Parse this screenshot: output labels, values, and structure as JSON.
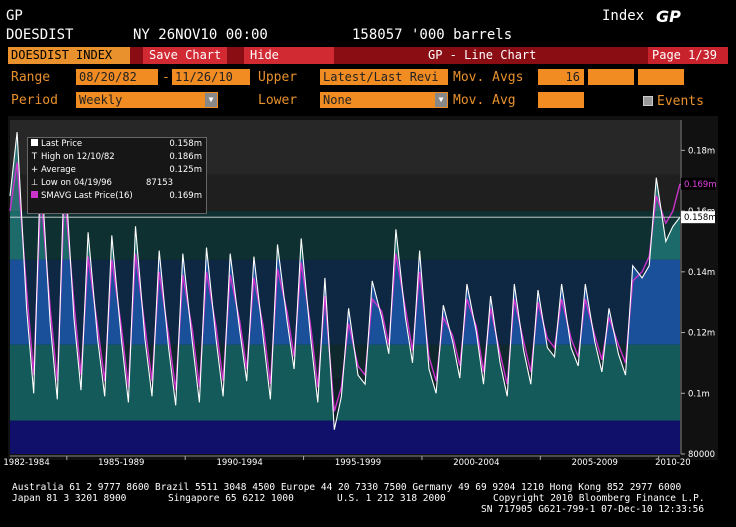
{
  "header": {
    "ticker": "GP",
    "index_label": "Index",
    "index_code": "GP",
    "name": "DOESDIST",
    "date_time": "NY 26NOV10 00:00",
    "value": "158057 '000 barrels"
  },
  "tabs": {
    "index": "DOESDIST INDEX",
    "save": "Save Chart",
    "hide": "Hide",
    "title": "GP - Line Chart",
    "page": "Page 1/39"
  },
  "controls": {
    "range_label": "Range",
    "range_start": "08/20/82",
    "range_sep": "-",
    "range_end": "11/26/10",
    "upper_label": "Upper",
    "upper_value": "Latest/Last Revi",
    "mov_avgs_label": "Mov. Avgs",
    "mov_avgs_value": "16",
    "period_label": "Period",
    "period_value": "Weekly",
    "lower_label": "Lower",
    "lower_value": "None",
    "mov_avg_label": "Mov. Avg",
    "events_label": "Events"
  },
  "legend": {
    "last_price_label": "Last Price",
    "last_price_value": "0.158m",
    "high_label": "High on 12/10/82",
    "high_value": "0.186m",
    "average_label": "Average",
    "average_value": "0.125m",
    "low_label": "Low on 04/19/96",
    "low_value": "87153",
    "smavg_label": "SMAVG Last Price(16)",
    "smavg_value": "0.169m"
  },
  "colors": {
    "price_line": "#ffffff",
    "smavg_line": "#cc33cc",
    "band_top": "#2b2b2b",
    "band_teal": "#0f4a4a",
    "band_blue": "#0c3a6e",
    "band_navy": "#0a0a45",
    "accent_orange": "#e8912d",
    "tab_red": "#8b0d14"
  },
  "chart_data": {
    "type": "line",
    "title": "GP - Line Chart",
    "xlabel": "",
    "ylabel": "",
    "ylim": [
      80000,
      190000
    ],
    "x_tick_labels": [
      "1982-1984",
      "1985-1989",
      "1990-1994",
      "1995-1999",
      "2000-2004",
      "2005-2009",
      "2010-20"
    ],
    "y_tick_labels": [
      "0.18m",
      "0.16m",
      "0.14m",
      "0.12m",
      "0.1m",
      "80000"
    ],
    "last_price_tag": "0.158m",
    "smavg_tag": "0.169m",
    "series": [
      {
        "name": "Last Price",
        "points": [
          [
            "1982.6",
            165000
          ],
          [
            "1982.9",
            186000
          ],
          [
            "1983.3",
            128000
          ],
          [
            "1983.6",
            100000
          ],
          [
            "1983.9",
            176000
          ],
          [
            "1984.3",
            123000
          ],
          [
            "1984.6",
            98000
          ],
          [
            "1984.9",
            176000
          ],
          [
            "1985.3",
            125000
          ],
          [
            "1985.6",
            101000
          ],
          [
            "1985.9",
            153000
          ],
          [
            "1986.3",
            118000
          ],
          [
            "1986.6",
            99000
          ],
          [
            "1986.9",
            152000
          ],
          [
            "1987.3",
            118000
          ],
          [
            "1987.6",
            97000
          ],
          [
            "1987.9",
            155000
          ],
          [
            "1988.3",
            118000
          ],
          [
            "1988.6",
            99000
          ],
          [
            "1988.9",
            147000
          ],
          [
            "1989.3",
            115000
          ],
          [
            "1989.6",
            96000
          ],
          [
            "1989.9",
            146000
          ],
          [
            "1990.3",
            117000
          ],
          [
            "1990.6",
            97000
          ],
          [
            "1990.9",
            148000
          ],
          [
            "1991.3",
            118000
          ],
          [
            "1991.6",
            99000
          ],
          [
            "1991.9",
            146000
          ],
          [
            "1992.3",
            121000
          ],
          [
            "1992.6",
            104000
          ],
          [
            "1992.9",
            145000
          ],
          [
            "1993.3",
            118000
          ],
          [
            "1993.6",
            98000
          ],
          [
            "1993.9",
            149000
          ],
          [
            "1994.3",
            124000
          ],
          [
            "1994.6",
            108000
          ],
          [
            "1994.9",
            151000
          ],
          [
            "1995.3",
            118000
          ],
          [
            "1995.6",
            97000
          ],
          [
            "1995.9",
            138000
          ],
          [
            "1996.3",
            88000
          ],
          [
            "1996.6",
            99000
          ],
          [
            "1996.9",
            128000
          ],
          [
            "1997.3",
            106000
          ],
          [
            "1997.6",
            103000
          ],
          [
            "1997.9",
            137000
          ],
          [
            "1998.3",
            125000
          ],
          [
            "1998.6",
            113000
          ],
          [
            "1998.9",
            154000
          ],
          [
            "1999.3",
            125000
          ],
          [
            "1999.6",
            110000
          ],
          [
            "1999.9",
            147000
          ],
          [
            "2000.3",
            108000
          ],
          [
            "2000.6",
            100000
          ],
          [
            "2000.9",
            129000
          ],
          [
            "2001.3",
            117000
          ],
          [
            "2001.6",
            105000
          ],
          [
            "2001.9",
            136000
          ],
          [
            "2002.3",
            120000
          ],
          [
            "2002.6",
            103000
          ],
          [
            "2002.9",
            132000
          ],
          [
            "2003.3",
            110000
          ],
          [
            "2003.6",
            99000
          ],
          [
            "2003.9",
            136000
          ],
          [
            "2004.3",
            114000
          ],
          [
            "2004.6",
            103000
          ],
          [
            "2004.9",
            134000
          ],
          [
            "2005.3",
            115000
          ],
          [
            "2005.6",
            112000
          ],
          [
            "2005.9",
            136000
          ],
          [
            "2006.3",
            115000
          ],
          [
            "2006.6",
            109000
          ],
          [
            "2006.9",
            136000
          ],
          [
            "2007.3",
            117000
          ],
          [
            "2007.6",
            107000
          ],
          [
            "2007.9",
            128000
          ],
          [
            "2008.3",
            113000
          ],
          [
            "2008.6",
            106000
          ],
          [
            "2008.9",
            142000
          ],
          [
            "2009.3",
            138000
          ],
          [
            "2009.6",
            142000
          ],
          [
            "2009.9",
            171000
          ],
          [
            "2010.3",
            150000
          ],
          [
            "2010.6",
            155000
          ],
          [
            "2010.9",
            158000
          ]
        ]
      },
      {
        "name": "SMAVG Last Price(16)",
        "points": [
          [
            "1982.6",
            160000
          ],
          [
            "1982.9",
            176000
          ],
          [
            "1983.3",
            134000
          ],
          [
            "1983.6",
            106000
          ],
          [
            "1983.9",
            166000
          ],
          [
            "1984.3",
            128000
          ],
          [
            "1984.6",
            104000
          ],
          [
            "1984.9",
            166000
          ],
          [
            "1985.3",
            130000
          ],
          [
            "1985.6",
            106000
          ],
          [
            "1985.9",
            145000
          ],
          [
            "1986.3",
            122000
          ],
          [
            "1986.6",
            104000
          ],
          [
            "1986.9",
            144000
          ],
          [
            "1987.3",
            122000
          ],
          [
            "1987.6",
            102000
          ],
          [
            "1987.9",
            146000
          ],
          [
            "1988.3",
            122000
          ],
          [
            "1988.6",
            104000
          ],
          [
            "1988.9",
            140000
          ],
          [
            "1989.3",
            119000
          ],
          [
            "1989.6",
            101000
          ],
          [
            "1989.9",
            139000
          ],
          [
            "1990.3",
            121000
          ],
          [
            "1990.6",
            102000
          ],
          [
            "1990.9",
            140000
          ],
          [
            "1991.3",
            122000
          ],
          [
            "1991.6",
            104000
          ],
          [
            "1991.9",
            139000
          ],
          [
            "1992.3",
            124000
          ],
          [
            "1992.6",
            108000
          ],
          [
            "1992.9",
            138000
          ],
          [
            "1993.3",
            122000
          ],
          [
            "1993.6",
            103000
          ],
          [
            "1993.9",
            141000
          ],
          [
            "1994.3",
            127000
          ],
          [
            "1994.6",
            112000
          ],
          [
            "1994.9",
            143000
          ],
          [
            "1995.3",
            122000
          ],
          [
            "1995.6",
            102000
          ],
          [
            "1995.9",
            132000
          ],
          [
            "1996.3",
            94000
          ],
          [
            "1996.6",
            102000
          ],
          [
            "1996.9",
            123000
          ],
          [
            "1997.3",
            109000
          ],
          [
            "1997.6",
            106000
          ],
          [
            "1997.9",
            131000
          ],
          [
            "1998.3",
            127000
          ],
          [
            "1998.6",
            116000
          ],
          [
            "1998.9",
            146000
          ],
          [
            "1999.3",
            128000
          ],
          [
            "1999.6",
            114000
          ],
          [
            "1999.9",
            140000
          ],
          [
            "2000.3",
            112000
          ],
          [
            "2000.6",
            104000
          ],
          [
            "2000.9",
            125000
          ],
          [
            "2001.3",
            119000
          ],
          [
            "2001.6",
            109000
          ],
          [
            "2001.9",
            131000
          ],
          [
            "2002.3",
            122000
          ],
          [
            "2002.6",
            107000
          ],
          [
            "2002.9",
            128000
          ],
          [
            "2003.3",
            113000
          ],
          [
            "2003.6",
            103000
          ],
          [
            "2003.9",
            131000
          ],
          [
            "2004.3",
            117000
          ],
          [
            "2004.6",
            107000
          ],
          [
            "2004.9",
            130000
          ],
          [
            "2005.3",
            118000
          ],
          [
            "2005.6",
            115000
          ],
          [
            "2005.9",
            131000
          ],
          [
            "2006.3",
            118000
          ],
          [
            "2006.6",
            112000
          ],
          [
            "2006.9",
            131000
          ],
          [
            "2007.3",
            119000
          ],
          [
            "2007.6",
            111000
          ],
          [
            "2007.9",
            125000
          ],
          [
            "2008.3",
            116000
          ],
          [
            "2008.6",
            110000
          ],
          [
            "2008.9",
            137000
          ],
          [
            "2009.3",
            140000
          ],
          [
            "2009.6",
            145000
          ],
          [
            "2009.9",
            165000
          ],
          [
            "2010.3",
            156000
          ],
          [
            "2010.6",
            160000
          ],
          [
            "2010.9",
            169000
          ]
        ]
      }
    ],
    "grid": false,
    "legend": "top-left"
  },
  "footer": {
    "line1": "Australia 61 2 9777 8600 Brazil 5511 3048 4500 Europe 44 20 7330 7500 Germany 49 69 9204 1210 Hong Kong 852 2977 6000",
    "line2a": "Japan 81 3 3201 8900",
    "line2b": "Singapore 65 6212 1000",
    "line2c": "U.S. 1 212 318 2000",
    "line2d": "Copyright 2010 Bloomberg Finance L.P.",
    "line3": "SN 717905 G621-799-1 07-Dec-10 12:33:56"
  }
}
